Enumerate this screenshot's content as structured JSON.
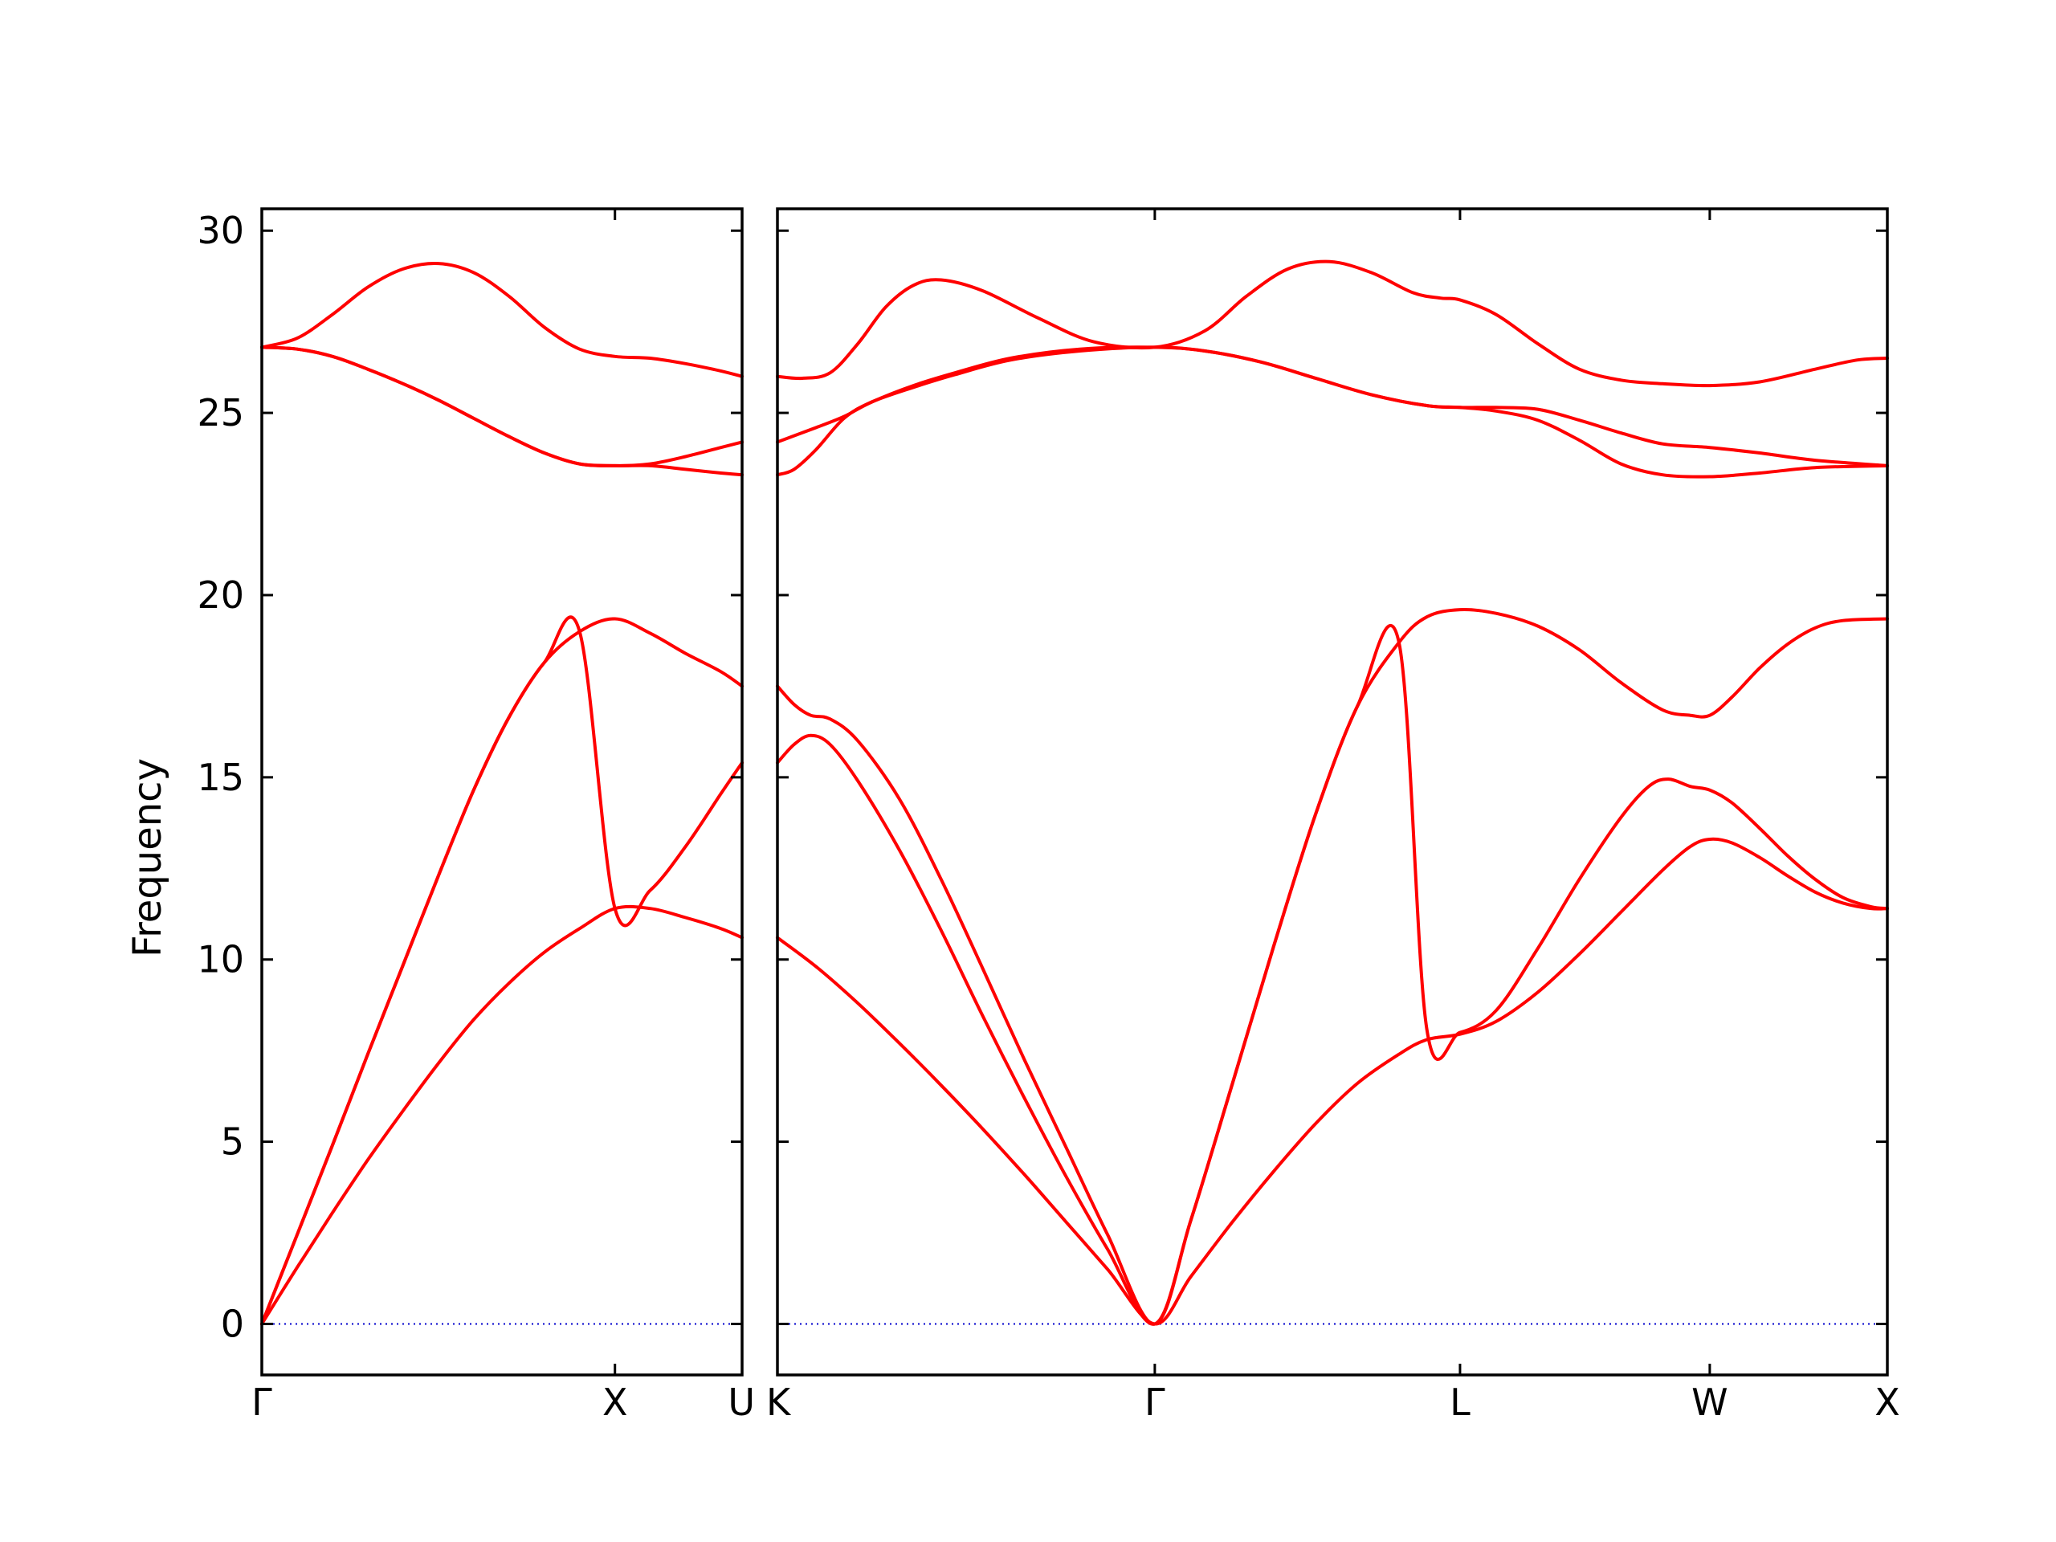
{
  "chart_data": {
    "type": "line",
    "title": "",
    "ylabel": "Frequency",
    "xlabel": "",
    "ylim": [
      -1.4,
      30.6
    ],
    "yticks": [
      0,
      5,
      10,
      15,
      20,
      25,
      30
    ],
    "line_color": "#ff0000",
    "zero_line_color": "#0000cc",
    "grid": false,
    "legend": "none",
    "panels": [
      {
        "name": "Γ-X-U",
        "xlim": [
          0,
          1.36
        ],
        "ticks": [
          {
            "x": 0,
            "label": "Γ"
          },
          {
            "x": 1.0,
            "label": "X"
          },
          {
            "x": 1.36,
            "label": "U"
          }
        ],
        "bands": [
          [
            [
              0,
              0
            ],
            [
              0.1,
              1.55
            ],
            [
              0.2,
              3.05
            ],
            [
              0.3,
              4.5
            ],
            [
              0.4,
              5.85
            ],
            [
              0.5,
              7.15
            ],
            [
              0.6,
              8.35
            ],
            [
              0.7,
              9.35
            ],
            [
              0.8,
              10.2
            ],
            [
              0.9,
              10.85
            ],
            [
              1.0,
              11.4
            ],
            [
              1.1,
              11.4
            ],
            [
              1.2,
              11.15
            ],
            [
              1.3,
              10.85
            ],
            [
              1.36,
              10.6
            ]
          ],
          [
            [
              0,
              0
            ],
            [
              0.1,
              2.45
            ],
            [
              0.2,
              4.9
            ],
            [
              0.3,
              7.4
            ],
            [
              0.4,
              9.85
            ],
            [
              0.5,
              12.3
            ],
            [
              0.6,
              14.65
            ],
            [
              0.7,
              16.65
            ],
            [
              0.8,
              18.15
            ],
            [
              0.9,
              19.0
            ],
            [
              1.0,
              19.35
            ],
            [
              1.1,
              18.95
            ],
            [
              1.2,
              18.4
            ],
            [
              1.3,
              17.9
            ],
            [
              1.36,
              17.5
            ]
          ],
          [
            [
              0,
              0
            ],
            [
              0.1,
              2.45
            ],
            [
              0.2,
              4.9
            ],
            [
              0.3,
              7.4
            ],
            [
              0.4,
              9.85
            ],
            [
              0.5,
              12.3
            ],
            [
              0.6,
              14.65
            ],
            [
              0.7,
              16.65
            ],
            [
              0.8,
              18.15
            ],
            [
              0.9,
              19.0
            ],
            [
              1.0,
              11.4
            ],
            [
              1.1,
              11.9
            ],
            [
              1.2,
              13.1
            ],
            [
              1.3,
              14.55
            ],
            [
              1.36,
              15.4
            ]
          ],
          [
            [
              0,
              26.8
            ],
            [
              0.1,
              26.75
            ],
            [
              0.2,
              26.55
            ],
            [
              0.3,
              26.2
            ],
            [
              0.4,
              25.8
            ],
            [
              0.5,
              25.35
            ],
            [
              0.6,
              24.85
            ],
            [
              0.7,
              24.35
            ],
            [
              0.8,
              23.9
            ],
            [
              0.9,
              23.6
            ],
            [
              1.0,
              23.55
            ],
            [
              1.1,
              23.55
            ],
            [
              1.2,
              23.45
            ],
            [
              1.3,
              23.35
            ],
            [
              1.36,
              23.3
            ]
          ],
          [
            [
              0,
              26.8
            ],
            [
              0.1,
              26.75
            ],
            [
              0.2,
              26.55
            ],
            [
              0.3,
              26.2
            ],
            [
              0.4,
              25.8
            ],
            [
              0.5,
              25.35
            ],
            [
              0.6,
              24.85
            ],
            [
              0.7,
              24.35
            ],
            [
              0.8,
              23.9
            ],
            [
              0.9,
              23.6
            ],
            [
              1.0,
              23.55
            ],
            [
              1.1,
              23.6
            ],
            [
              1.2,
              23.8
            ],
            [
              1.3,
              24.05
            ],
            [
              1.36,
              24.2
            ]
          ],
          [
            [
              0,
              26.8
            ],
            [
              0.1,
              27.05
            ],
            [
              0.2,
              27.7
            ],
            [
              0.3,
              28.45
            ],
            [
              0.4,
              28.95
            ],
            [
              0.5,
              29.1
            ],
            [
              0.6,
              28.85
            ],
            [
              0.7,
              28.2
            ],
            [
              0.8,
              27.35
            ],
            [
              0.9,
              26.75
            ],
            [
              1.0,
              26.55
            ],
            [
              1.1,
              26.5
            ],
            [
              1.2,
              26.35
            ],
            [
              1.3,
              26.15
            ],
            [
              1.36,
              26.0
            ]
          ]
        ]
      },
      {
        "name": "K-Γ-L-W-X",
        "xlim": [
          1.36,
          5.36
        ],
        "ticks": [
          {
            "x": 1.36,
            "label": "K"
          },
          {
            "x": 2.72,
            "label": "Γ"
          },
          {
            "x": 3.82,
            "label": "L"
          },
          {
            "x": 4.72,
            "label": "W"
          },
          {
            "x": 5.36,
            "label": "X"
          }
        ],
        "bands": [
          [
            [
              1.36,
              10.6
            ],
            [
              1.5,
              9.8
            ],
            [
              1.65,
              8.8
            ],
            [
              1.8,
              7.7
            ],
            [
              1.95,
              6.55
            ],
            [
              2.1,
              5.35
            ],
            [
              2.25,
              4.1
            ],
            [
              2.4,
              2.8
            ],
            [
              2.55,
              1.5
            ],
            [
              2.72,
              0
            ],
            [
              2.85,
              1.3
            ],
            [
              3.0,
              2.8
            ],
            [
              3.15,
              4.2
            ],
            [
              3.3,
              5.5
            ],
            [
              3.45,
              6.6
            ],
            [
              3.6,
              7.4
            ],
            [
              3.7,
              7.8
            ],
            [
              3.82,
              7.95
            ],
            [
              3.95,
              8.3
            ],
            [
              4.1,
              9.1
            ],
            [
              4.25,
              10.15
            ],
            [
              4.4,
              11.3
            ],
            [
              4.55,
              12.45
            ],
            [
              4.65,
              13.1
            ],
            [
              4.72,
              13.3
            ],
            [
              4.8,
              13.2
            ],
            [
              4.9,
              12.8
            ],
            [
              5.0,
              12.3
            ],
            [
              5.1,
              11.85
            ],
            [
              5.2,
              11.55
            ],
            [
              5.3,
              11.4
            ],
            [
              5.36,
              11.4
            ]
          ],
          [
            [
              1.36,
              15.4
            ],
            [
              1.42,
              15.9
            ],
            [
              1.48,
              16.15
            ],
            [
              1.55,
              15.9
            ],
            [
              1.65,
              14.9
            ],
            [
              1.8,
              13.0
            ],
            [
              1.95,
              10.8
            ],
            [
              2.1,
              8.45
            ],
            [
              2.25,
              6.2
            ],
            [
              2.4,
              4.05
            ],
            [
              2.55,
              2.05
            ],
            [
              2.72,
              0
            ],
            [
              2.85,
              2.85
            ],
            [
              3.0,
              6.6
            ],
            [
              3.15,
              10.4
            ],
            [
              3.3,
              14.0
            ],
            [
              3.45,
              16.95
            ],
            [
              3.6,
              18.7
            ],
            [
              3.7,
              19.4
            ],
            [
              3.82,
              19.6
            ],
            [
              3.95,
              19.5
            ],
            [
              4.1,
              19.15
            ],
            [
              4.25,
              18.5
            ],
            [
              4.4,
              17.6
            ],
            [
              4.55,
              16.85
            ],
            [
              4.65,
              16.7
            ],
            [
              4.72,
              16.7
            ],
            [
              4.8,
              17.2
            ],
            [
              4.9,
              18.0
            ],
            [
              5.0,
              18.65
            ],
            [
              5.1,
              19.1
            ],
            [
              5.2,
              19.3
            ],
            [
              5.36,
              19.35
            ]
          ],
          [
            [
              1.36,
              17.5
            ],
            [
              1.42,
              17.0
            ],
            [
              1.48,
              16.7
            ],
            [
              1.55,
              16.6
            ],
            [
              1.65,
              16.0
            ],
            [
              1.8,
              14.4
            ],
            [
              1.95,
              12.2
            ],
            [
              2.1,
              9.75
            ],
            [
              2.25,
              7.25
            ],
            [
              2.4,
              4.85
            ],
            [
              2.55,
              2.45
            ],
            [
              2.72,
              0
            ],
            [
              2.85,
              2.85
            ],
            [
              3.0,
              6.6
            ],
            [
              3.15,
              10.4
            ],
            [
              3.3,
              14.0
            ],
            [
              3.45,
              16.95
            ],
            [
              3.6,
              18.7
            ],
            [
              3.7,
              8.1
            ],
            [
              3.82,
              8.0
            ],
            [
              3.95,
              8.6
            ],
            [
              4.1,
              10.3
            ],
            [
              4.25,
              12.2
            ],
            [
              4.4,
              13.9
            ],
            [
              4.5,
              14.75
            ],
            [
              4.57,
              14.95
            ],
            [
              4.65,
              14.75
            ],
            [
              4.72,
              14.65
            ],
            [
              4.8,
              14.3
            ],
            [
              4.9,
              13.6
            ],
            [
              5.0,
              12.85
            ],
            [
              5.1,
              12.2
            ],
            [
              5.2,
              11.7
            ],
            [
              5.3,
              11.45
            ],
            [
              5.36,
              11.4
            ]
          ],
          [
            [
              1.36,
              23.3
            ],
            [
              1.42,
              23.45
            ],
            [
              1.5,
              24.0
            ],
            [
              1.6,
              24.85
            ],
            [
              1.7,
              25.3
            ],
            [
              1.85,
              25.7
            ],
            [
              2.0,
              26.05
            ],
            [
              2.2,
              26.45
            ],
            [
              2.45,
              26.7
            ],
            [
              2.72,
              26.8
            ],
            [
              2.9,
              26.7
            ],
            [
              3.1,
              26.4
            ],
            [
              3.3,
              25.95
            ],
            [
              3.5,
              25.5
            ],
            [
              3.7,
              25.2
            ],
            [
              3.82,
              25.15
            ],
            [
              3.95,
              25.05
            ],
            [
              4.1,
              24.8
            ],
            [
              4.25,
              24.25
            ],
            [
              4.4,
              23.6
            ],
            [
              4.55,
              23.3
            ],
            [
              4.72,
              23.25
            ],
            [
              4.9,
              23.35
            ],
            [
              5.1,
              23.5
            ],
            [
              5.36,
              23.55
            ]
          ],
          [
            [
              1.36,
              24.2
            ],
            [
              1.5,
              24.6
            ],
            [
              1.6,
              24.9
            ],
            [
              1.7,
              25.3
            ],
            [
              1.85,
              25.75
            ],
            [
              2.0,
              26.1
            ],
            [
              2.2,
              26.5
            ],
            [
              2.45,
              26.75
            ],
            [
              2.72,
              26.8
            ],
            [
              2.9,
              26.7
            ],
            [
              3.1,
              26.4
            ],
            [
              3.3,
              25.95
            ],
            [
              3.5,
              25.5
            ],
            [
              3.7,
              25.2
            ],
            [
              3.82,
              25.15
            ],
            [
              3.95,
              25.15
            ],
            [
              4.1,
              25.1
            ],
            [
              4.25,
              24.8
            ],
            [
              4.4,
              24.45
            ],
            [
              4.55,
              24.15
            ],
            [
              4.72,
              24.05
            ],
            [
              4.9,
              23.9
            ],
            [
              5.1,
              23.7
            ],
            [
              5.36,
              23.55
            ]
          ],
          [
            [
              1.36,
              26.0
            ],
            [
              1.45,
              25.95
            ],
            [
              1.55,
              26.1
            ],
            [
              1.65,
              26.9
            ],
            [
              1.75,
              27.9
            ],
            [
              1.85,
              28.5
            ],
            [
              1.95,
              28.65
            ],
            [
              2.1,
              28.35
            ],
            [
              2.3,
              27.6
            ],
            [
              2.5,
              26.95
            ],
            [
              2.72,
              26.8
            ],
            [
              2.9,
              27.25
            ],
            [
              3.05,
              28.2
            ],
            [
              3.2,
              28.95
            ],
            [
              3.35,
              29.15
            ],
            [
              3.5,
              28.85
            ],
            [
              3.65,
              28.3
            ],
            [
              3.75,
              28.15
            ],
            [
              3.82,
              28.1
            ],
            [
              3.95,
              27.7
            ],
            [
              4.1,
              26.9
            ],
            [
              4.25,
              26.2
            ],
            [
              4.4,
              25.9
            ],
            [
              4.55,
              25.8
            ],
            [
              4.72,
              25.75
            ],
            [
              4.9,
              25.85
            ],
            [
              5.1,
              26.2
            ],
            [
              5.25,
              26.45
            ],
            [
              5.36,
              26.5
            ]
          ]
        ]
      }
    ]
  }
}
